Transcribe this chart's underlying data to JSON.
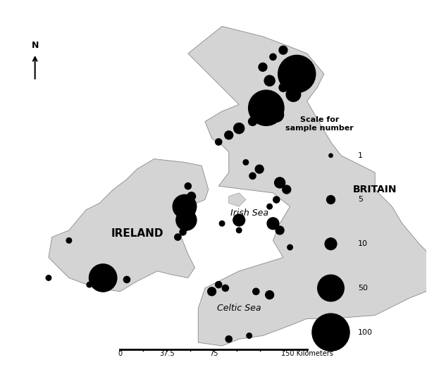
{
  "background_color": "#e8e8e8",
  "land_color": "#d4d4d4",
  "ocean_color": "#f0f0f0",
  "title_text": "",
  "scale_values": [
    1,
    5,
    10,
    50,
    100
  ],
  "scale_label": "Scale for\nsample number",
  "ireland_label": "IRELAND",
  "britain_label": "BRITAIN",
  "irish_sea_label": "Irish Sea",
  "celtic_sea_label": "Celtic Sea",
  "locations": [
    {
      "lon": -6.0,
      "lat": 54.6,
      "n": 3,
      "label": ""
    },
    {
      "lon": -5.9,
      "lat": 54.3,
      "n": 5,
      "label": ""
    },
    {
      "lon": -6.1,
      "lat": 54.0,
      "n": 40,
      "label": ""
    },
    {
      "lon": -5.95,
      "lat": 53.85,
      "n": 8,
      "label": ""
    },
    {
      "lon": -6.05,
      "lat": 53.6,
      "n": 30,
      "label": ""
    },
    {
      "lon": -6.1,
      "lat": 53.4,
      "n": 5,
      "label": ""
    },
    {
      "lon": -6.15,
      "lat": 53.25,
      "n": 3,
      "label": ""
    },
    {
      "lon": -6.3,
      "lat": 53.1,
      "n": 3,
      "label": ""
    },
    {
      "lon": -9.5,
      "lat": 53.0,
      "n": 2,
      "label": ""
    },
    {
      "lon": -10.1,
      "lat": 51.9,
      "n": 2,
      "label": ""
    },
    {
      "lon": -8.5,
      "lat": 51.9,
      "n": 55,
      "label": ""
    },
    {
      "lon": -7.8,
      "lat": 51.85,
      "n": 3,
      "label": ""
    },
    {
      "lon": -8.9,
      "lat": 51.7,
      "n": 2,
      "label": ""
    },
    {
      "lon": -3.2,
      "lat": 58.6,
      "n": 5,
      "label": ""
    },
    {
      "lon": -3.5,
      "lat": 58.4,
      "n": 3,
      "label": ""
    },
    {
      "lon": -3.0,
      "lat": 58.2,
      "n": 10,
      "label": ""
    },
    {
      "lon": -3.8,
      "lat": 58.1,
      "n": 5,
      "label": ""
    },
    {
      "lon": -2.8,
      "lat": 57.9,
      "n": 100,
      "label": ""
    },
    {
      "lon": -3.6,
      "lat": 57.7,
      "n": 8,
      "label": ""
    },
    {
      "lon": -3.2,
      "lat": 57.5,
      "n": 5,
      "label": ""
    },
    {
      "lon": -2.9,
      "lat": 57.3,
      "n": 15,
      "label": ""
    },
    {
      "lon": -3.5,
      "lat": 57.1,
      "n": 5,
      "label": ""
    },
    {
      "lon": -3.7,
      "lat": 56.9,
      "n": 90,
      "label": ""
    },
    {
      "lon": -3.4,
      "lat": 56.7,
      "n": 15,
      "label": ""
    },
    {
      "lon": -4.1,
      "lat": 56.5,
      "n": 5,
      "label": ""
    },
    {
      "lon": -4.5,
      "lat": 56.3,
      "n": 8,
      "label": ""
    },
    {
      "lon": -4.8,
      "lat": 56.1,
      "n": 5,
      "label": ""
    },
    {
      "lon": -5.1,
      "lat": 55.9,
      "n": 3,
      "label": ""
    },
    {
      "lon": -4.3,
      "lat": 55.3,
      "n": 2,
      "label": ""
    },
    {
      "lon": -3.9,
      "lat": 55.1,
      "n": 5,
      "label": ""
    },
    {
      "lon": -4.1,
      "lat": 54.9,
      "n": 3,
      "label": ""
    },
    {
      "lon": -3.3,
      "lat": 54.7,
      "n": 8,
      "label": ""
    },
    {
      "lon": -3.1,
      "lat": 54.5,
      "n": 5,
      "label": ""
    },
    {
      "lon": -3.4,
      "lat": 54.2,
      "n": 3,
      "label": ""
    },
    {
      "lon": -3.6,
      "lat": 54.0,
      "n": 2,
      "label": ""
    },
    {
      "lon": -5.0,
      "lat": 53.5,
      "n": 2,
      "label": ""
    },
    {
      "lon": -4.5,
      "lat": 53.3,
      "n": 2,
      "label": ""
    },
    {
      "lon": -3.5,
      "lat": 53.5,
      "n": 10,
      "label": ""
    },
    {
      "lon": -3.3,
      "lat": 53.3,
      "n": 5,
      "label": ""
    },
    {
      "lon": -3.0,
      "lat": 52.8,
      "n": 2,
      "label": ""
    },
    {
      "lon": -5.1,
      "lat": 51.7,
      "n": 3,
      "label": ""
    },
    {
      "lon": -5.3,
      "lat": 51.5,
      "n": 5,
      "label": ""
    },
    {
      "lon": -4.9,
      "lat": 51.6,
      "n": 3,
      "label": ""
    },
    {
      "lon": -4.0,
      "lat": 51.5,
      "n": 3,
      "label": ""
    },
    {
      "lon": -3.6,
      "lat": 51.4,
      "n": 5,
      "label": ""
    },
    {
      "lon": -4.8,
      "lat": 50.1,
      "n": 3,
      "label": ""
    },
    {
      "lon": -4.2,
      "lat": 50.2,
      "n": 2,
      "label": ""
    },
    {
      "lon": -4.5,
      "lat": 53.6,
      "n": 10,
      "label": ""
    }
  ],
  "figsize": [
    6.06,
    5.38
  ],
  "dpi": 100
}
